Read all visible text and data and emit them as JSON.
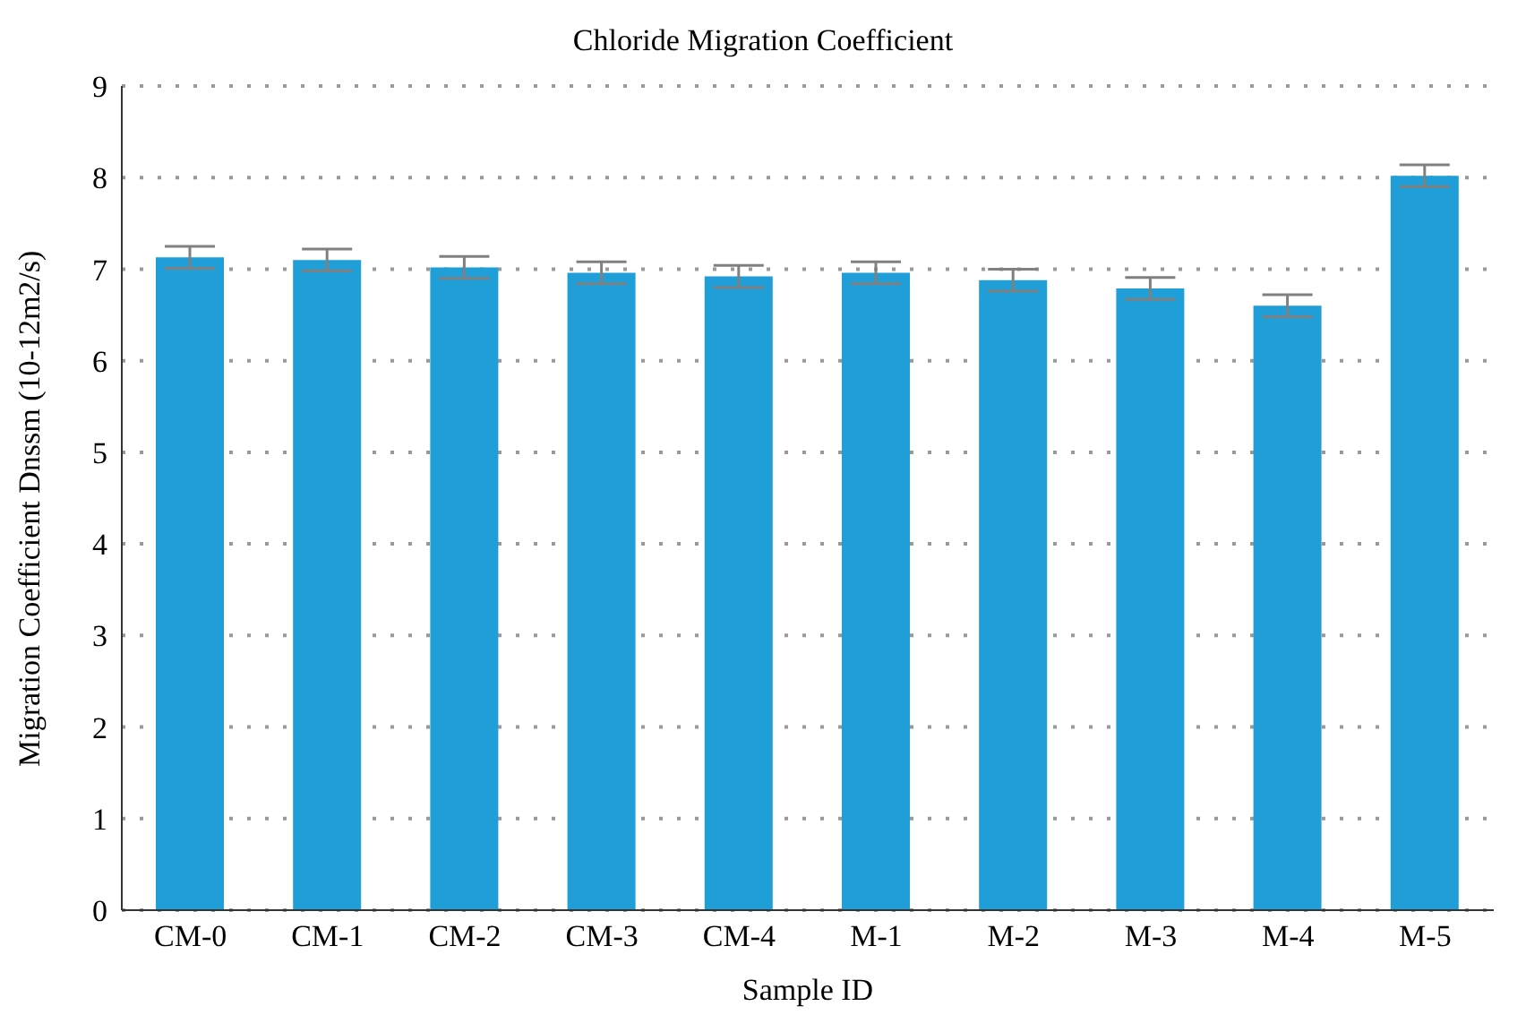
{
  "chart_data": {
    "type": "bar",
    "title": "Chloride Migration Coefficient",
    "xlabel": "Sample ID",
    "ylabel": "Migration Coefficient Dnssm (10-12m2/s)",
    "categories": [
      "CM-0",
      "CM-1",
      "CM-2",
      "CM-3",
      "CM-4",
      "M-1",
      "M-2",
      "M-3",
      "M-4",
      "M-5"
    ],
    "values": [
      7.13,
      7.1,
      7.02,
      6.96,
      6.92,
      6.96,
      6.88,
      6.79,
      6.6,
      8.02
    ],
    "errors": [
      0.12,
      0.12,
      0.12,
      0.12,
      0.12,
      0.12,
      0.12,
      0.12,
      0.12,
      0.12
    ],
    "color": "#1f9ed8",
    "ylim": [
      0,
      9
    ],
    "yticks": [
      0,
      1,
      2,
      3,
      4,
      5,
      6,
      7,
      8,
      9
    ],
    "grid": "y"
  }
}
